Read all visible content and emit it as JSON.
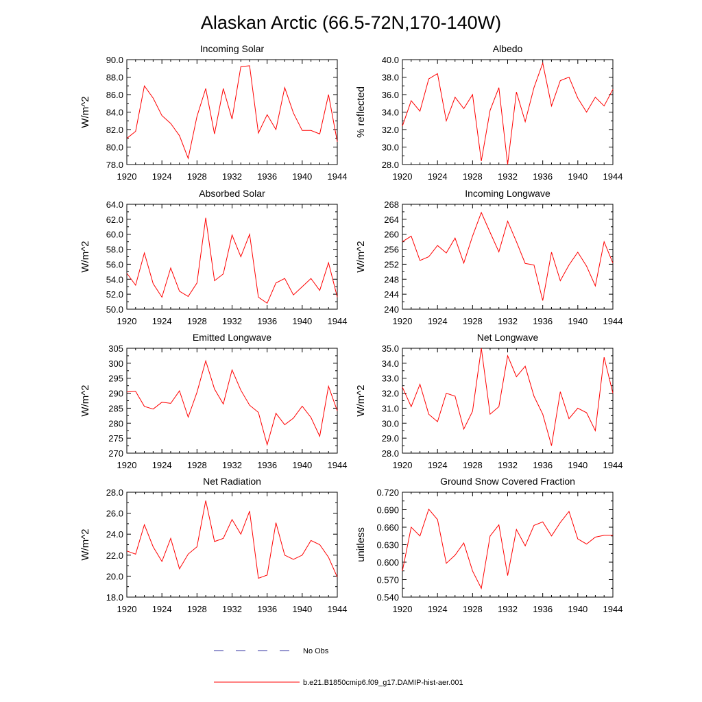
{
  "figure": {
    "title": "Alaskan Arctic (66.5-72N,170-140W)",
    "line_color": "#ff0000",
    "obs_color": "#3030a0"
  },
  "legend": {
    "obs_label": "No Obs",
    "model_label": "b.e21.B1850cmip6.f09_g17.DAMIP-hist-aer.001"
  },
  "chart_data": [
    {
      "type": "line",
      "title": "Incoming Solar",
      "xlabel": "",
      "ylabel": "W/m^2",
      "xlim": [
        1920,
        1944
      ],
      "ylim": [
        78,
        90
      ],
      "x_ticks": [
        1920,
        1924,
        1928,
        1932,
        1936,
        1940,
        1944
      ],
      "y_ticks": [
        "78.0",
        "80.0",
        "82.0",
        "84.0",
        "86.0",
        "88.0",
        "90.0"
      ],
      "series": [
        {
          "values": [
            81.0,
            81.8,
            87.0,
            85.6,
            83.6,
            82.7,
            81.3,
            78.7,
            83.5,
            86.7,
            81.5,
            86.7,
            83.2,
            89.2,
            89.3,
            81.6,
            83.7,
            82.0,
            86.8,
            83.9,
            81.9,
            81.9,
            81.5,
            86.0,
            80.6
          ]
        }
      ]
    },
    {
      "type": "line",
      "title": "Albedo",
      "xlabel": "",
      "ylabel": "% reflected",
      "xlim": [
        1920,
        1944
      ],
      "ylim": [
        28,
        40
      ],
      "x_ticks": [
        1920,
        1924,
        1928,
        1932,
        1936,
        1940,
        1944
      ],
      "y_ticks": [
        "28.0",
        "30.0",
        "32.0",
        "34.0",
        "36.0",
        "38.0",
        "40.0"
      ],
      "series": [
        {
          "values": [
            32.4,
            35.3,
            34.1,
            37.8,
            38.4,
            33.0,
            35.7,
            34.4,
            36.0,
            28.4,
            34.2,
            36.8,
            28.0,
            36.3,
            32.9,
            36.8,
            39.6,
            34.7,
            37.6,
            38.0,
            35.6,
            34.0,
            35.7,
            34.7,
            36.6
          ]
        }
      ]
    },
    {
      "type": "line",
      "title": "Absorbed Solar",
      "xlabel": "",
      "ylabel": "W/m^2",
      "xlim": [
        1920,
        1944
      ],
      "ylim": [
        50,
        64
      ],
      "x_ticks": [
        1920,
        1924,
        1928,
        1932,
        1936,
        1940,
        1944
      ],
      "y_ticks": [
        "50.0",
        "52.0",
        "54.0",
        "56.0",
        "58.0",
        "60.0",
        "62.0",
        "64.0"
      ],
      "series": [
        {
          "values": [
            54.8,
            53.2,
            57.5,
            53.4,
            51.6,
            55.5,
            52.4,
            51.7,
            53.5,
            62.2,
            53.8,
            54.7,
            59.9,
            57.0,
            60.0,
            51.6,
            50.8,
            53.5,
            54.1,
            51.9,
            53.0,
            54.1,
            52.5,
            56.2,
            51.6
          ]
        }
      ]
    },
    {
      "type": "line",
      "title": "Incoming Longwave",
      "xlabel": "",
      "ylabel": "W/m^2",
      "xlim": [
        1920,
        1944
      ],
      "ylim": [
        240,
        268
      ],
      "x_ticks": [
        1920,
        1924,
        1928,
        1932,
        1936,
        1940,
        1944
      ],
      "y_ticks": [
        "240",
        "244",
        "248",
        "252",
        "256",
        "260",
        "264",
        "268"
      ],
      "series": [
        {
          "values": [
            258.0,
            259.5,
            253.0,
            254.0,
            257.0,
            255.0,
            259.0,
            252.3,
            259.5,
            265.8,
            260.5,
            255.3,
            263.5,
            258.0,
            252.2,
            251.8,
            242.3,
            255.2,
            247.6,
            251.8,
            255.2,
            251.5,
            246.2,
            258.0,
            252.3
          ]
        }
      ]
    },
    {
      "type": "line",
      "title": "Emitted Longwave",
      "xlabel": "",
      "ylabel": "W/m^2",
      "xlim": [
        1920,
        1944
      ],
      "ylim": [
        270,
        305
      ],
      "x_ticks": [
        1920,
        1924,
        1928,
        1932,
        1936,
        1940,
        1944
      ],
      "y_ticks": [
        "270",
        "275",
        "280",
        "285",
        "290",
        "295",
        "300",
        "305"
      ],
      "series": [
        {
          "values": [
            290.4,
            290.6,
            285.6,
            284.7,
            287.0,
            286.6,
            290.8,
            282.0,
            290.3,
            300.8,
            291.4,
            286.4,
            297.8,
            291.0,
            286.0,
            283.6,
            272.8,
            283.3,
            279.5,
            281.7,
            285.7,
            281.9,
            275.6,
            292.3,
            284.1
          ]
        }
      ]
    },
    {
      "type": "line",
      "title": "Net Longwave",
      "xlabel": "",
      "ylabel": "W/m^2",
      "xlim": [
        1920,
        1944
      ],
      "ylim": [
        28,
        35
      ],
      "x_ticks": [
        1920,
        1924,
        1928,
        1932,
        1936,
        1940,
        1944
      ],
      "y_ticks": [
        "28.0",
        "29.0",
        "30.0",
        "31.0",
        "32.0",
        "33.0",
        "34.0",
        "35.0"
      ],
      "series": [
        {
          "values": [
            32.4,
            31.1,
            32.6,
            30.6,
            30.1,
            32.0,
            31.8,
            29.6,
            30.8,
            35.0,
            30.6,
            31.1,
            34.5,
            33.1,
            33.8,
            31.8,
            30.6,
            28.5,
            32.1,
            30.3,
            31.0,
            30.7,
            29.5,
            34.4,
            32.0
          ]
        }
      ]
    },
    {
      "type": "line",
      "title": "Net Radiation",
      "xlabel": "",
      "ylabel": "W/m^2",
      "xlim": [
        1920,
        1944
      ],
      "ylim": [
        18,
        28
      ],
      "x_ticks": [
        1920,
        1924,
        1928,
        1932,
        1936,
        1940,
        1944
      ],
      "y_ticks": [
        "18.0",
        "20.0",
        "22.0",
        "24.0",
        "26.0",
        "28.0"
      ],
      "series": [
        {
          "values": [
            22.4,
            22.1,
            24.9,
            22.8,
            21.4,
            23.6,
            20.7,
            22.1,
            22.8,
            27.2,
            23.3,
            23.6,
            25.4,
            24.0,
            26.2,
            19.8,
            20.1,
            25.1,
            22.0,
            21.6,
            22.0,
            23.4,
            23.0,
            21.8,
            19.9
          ]
        }
      ]
    },
    {
      "type": "line",
      "title": "Ground Snow Covered Fraction",
      "xlabel": "",
      "ylabel": "unitless",
      "xlim": [
        1920,
        1944
      ],
      "ylim": [
        0.54,
        0.72
      ],
      "x_ticks": [
        1920,
        1924,
        1928,
        1932,
        1936,
        1940,
        1944
      ],
      "y_ticks": [
        "0.540",
        "0.570",
        "0.600",
        "0.630",
        "0.660",
        "0.690",
        "0.720"
      ],
      "series": [
        {
          "values": [
            0.585,
            0.66,
            0.645,
            0.691,
            0.673,
            0.598,
            0.612,
            0.633,
            0.585,
            0.555,
            0.645,
            0.664,
            0.577,
            0.656,
            0.628,
            0.663,
            0.669,
            0.645,
            0.668,
            0.687,
            0.64,
            0.631,
            0.643,
            0.646,
            0.646
          ]
        }
      ]
    }
  ]
}
